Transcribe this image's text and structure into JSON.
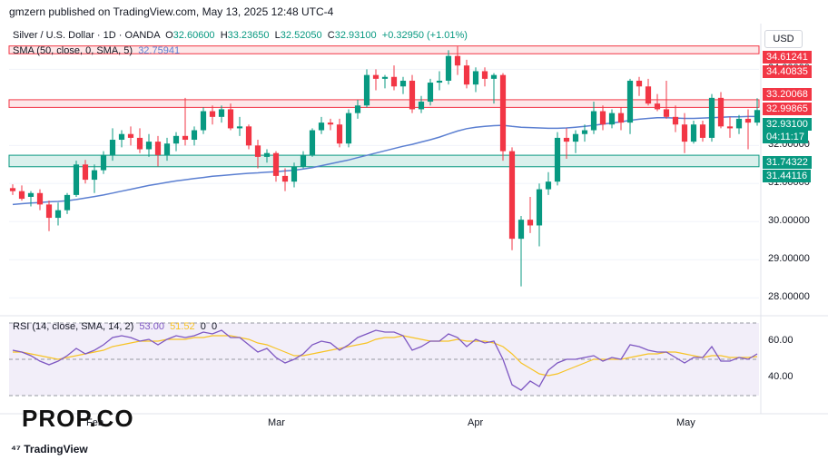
{
  "header": {
    "publisher": "gmzern published on TradingView.com, May 13, 2025 12:48 UTC-4"
  },
  "legend": {
    "symbol": "Silver / U.S. Dollar · 1D · OANDA",
    "open_label": "O",
    "open": "32.60600",
    "high_label": "H",
    "high": "33.23650",
    "low_label": "L",
    "low": "32.52050",
    "close_label": "C",
    "close": "32.93100",
    "change": "+0.32950 (+1.01%)",
    "sma_label": "SMA (50, close, 0, SMA, 5)",
    "sma_value": "32.75941"
  },
  "price_axis": {
    "currency": "USD",
    "ticks": [
      "34.00000",
      "32.00000",
      "31.00000",
      "30.00000",
      "29.00000",
      "28.00000"
    ],
    "tags": [
      {
        "text": "34.61241",
        "color": "#f23645"
      },
      {
        "text": "34.40835",
        "color": "#f23645"
      },
      {
        "text": "33.20068",
        "color": "#f23645"
      },
      {
        "text": "32.99865",
        "color": "#f23645"
      },
      {
        "text": "32.93100",
        "color": "#089981"
      },
      {
        "text": "04:11:17",
        "color": "#089981"
      },
      {
        "text": "31.74322",
        "color": "#089981"
      },
      {
        "text": "31.44116",
        "color": "#089981"
      }
    ]
  },
  "rsi": {
    "label": "RSI (14, close, SMA, 14, 2)",
    "value1": "53.00",
    "value2": "51.52",
    "value3": "0",
    "value4": "0",
    "ticks": [
      "60.00",
      "40.00"
    ]
  },
  "xaxis": {
    "labels": [
      "Feb",
      "Mar",
      "Apr",
      "May"
    ]
  },
  "brand": {
    "watermark": "PROP.CO",
    "tradingview": "TradingView"
  },
  "colors": {
    "up": "#089981",
    "down": "#f23645",
    "sma": "#5b7fd1",
    "rsi": "#7e57c2",
    "rsi_ma": "#f7c325"
  },
  "chart_data": {
    "type": "candlestick",
    "title": "Silver / U.S. Dollar · 1D · OANDA",
    "ylim": [
      27.6,
      35.2
    ],
    "resistance_zones": [
      [
        34.40835,
        34.61241
      ],
      [
        32.99865,
        33.20068
      ]
    ],
    "support_zone": [
      31.44116,
      31.74322
    ],
    "candles": [
      {
        "o": 30.88,
        "h": 30.98,
        "l": 30.7,
        "c": 30.8
      },
      {
        "o": 30.8,
        "h": 30.95,
        "l": 30.55,
        "c": 30.6
      },
      {
        "o": 30.65,
        "h": 30.8,
        "l": 30.4,
        "c": 30.75
      },
      {
        "o": 30.75,
        "h": 30.85,
        "l": 30.3,
        "c": 30.45
      },
      {
        "o": 30.45,
        "h": 30.55,
        "l": 29.75,
        "c": 30.1
      },
      {
        "o": 30.1,
        "h": 30.5,
        "l": 29.9,
        "c": 30.3
      },
      {
        "o": 30.3,
        "h": 30.75,
        "l": 30.2,
        "c": 30.7
      },
      {
        "o": 30.7,
        "h": 31.6,
        "l": 30.65,
        "c": 31.5
      },
      {
        "o": 31.5,
        "h": 31.62,
        "l": 31.0,
        "c": 31.1
      },
      {
        "o": 31.1,
        "h": 31.5,
        "l": 30.75,
        "c": 31.35
      },
      {
        "o": 31.35,
        "h": 31.85,
        "l": 31.25,
        "c": 31.75
      },
      {
        "o": 31.75,
        "h": 32.45,
        "l": 31.6,
        "c": 32.15
      },
      {
        "o": 32.15,
        "h": 32.4,
        "l": 31.95,
        "c": 32.3
      },
      {
        "o": 32.3,
        "h": 32.5,
        "l": 32.0,
        "c": 32.2
      },
      {
        "o": 32.2,
        "h": 32.45,
        "l": 31.8,
        "c": 31.9
      },
      {
        "o": 31.9,
        "h": 32.3,
        "l": 31.7,
        "c": 32.1
      },
      {
        "o": 32.1,
        "h": 32.25,
        "l": 31.45,
        "c": 31.75
      },
      {
        "o": 31.75,
        "h": 32.2,
        "l": 31.6,
        "c": 32.05
      },
      {
        "o": 32.05,
        "h": 32.35,
        "l": 31.85,
        "c": 32.25
      },
      {
        "o": 32.25,
        "h": 33.25,
        "l": 32.0,
        "c": 32.15
      },
      {
        "o": 32.15,
        "h": 32.5,
        "l": 32.0,
        "c": 32.4
      },
      {
        "o": 32.4,
        "h": 33.0,
        "l": 32.3,
        "c": 32.9
      },
      {
        "o": 32.9,
        "h": 33.05,
        "l": 32.55,
        "c": 32.75
      },
      {
        "o": 32.75,
        "h": 33.05,
        "l": 32.6,
        "c": 32.95
      },
      {
        "o": 32.95,
        "h": 33.1,
        "l": 32.4,
        "c": 32.45
      },
      {
        "o": 32.45,
        "h": 32.75,
        "l": 32.25,
        "c": 32.5
      },
      {
        "o": 32.5,
        "h": 32.55,
        "l": 31.9,
        "c": 32.0
      },
      {
        "o": 32.0,
        "h": 32.15,
        "l": 31.4,
        "c": 31.7
      },
      {
        "o": 31.7,
        "h": 31.9,
        "l": 31.55,
        "c": 31.8
      },
      {
        "o": 31.8,
        "h": 31.85,
        "l": 31.05,
        "c": 31.2
      },
      {
        "o": 31.2,
        "h": 31.4,
        "l": 30.8,
        "c": 31.05
      },
      {
        "o": 31.05,
        "h": 31.55,
        "l": 30.9,
        "c": 31.45
      },
      {
        "o": 31.45,
        "h": 31.85,
        "l": 31.4,
        "c": 31.75
      },
      {
        "o": 31.75,
        "h": 32.45,
        "l": 31.7,
        "c": 32.4
      },
      {
        "o": 32.4,
        "h": 32.75,
        "l": 32.3,
        "c": 32.6
      },
      {
        "o": 32.6,
        "h": 32.7,
        "l": 32.4,
        "c": 32.55
      },
      {
        "o": 32.55,
        "h": 32.7,
        "l": 31.95,
        "c": 32.05
      },
      {
        "o": 32.05,
        "h": 32.95,
        "l": 31.95,
        "c": 32.85
      },
      {
        "o": 32.85,
        "h": 33.2,
        "l": 32.7,
        "c": 33.05
      },
      {
        "o": 33.05,
        "h": 34.0,
        "l": 33.0,
        "c": 33.85
      },
      {
        "o": 33.85,
        "h": 34.0,
        "l": 33.45,
        "c": 33.75
      },
      {
        "o": 33.75,
        "h": 33.85,
        "l": 33.5,
        "c": 33.8
      },
      {
        "o": 33.8,
        "h": 34.1,
        "l": 33.45,
        "c": 33.55
      },
      {
        "o": 33.55,
        "h": 33.8,
        "l": 33.35,
        "c": 33.7
      },
      {
        "o": 33.7,
        "h": 33.85,
        "l": 32.85,
        "c": 32.95
      },
      {
        "o": 32.95,
        "h": 33.3,
        "l": 32.85,
        "c": 33.15
      },
      {
        "o": 33.15,
        "h": 33.75,
        "l": 33.05,
        "c": 33.65
      },
      {
        "o": 33.65,
        "h": 33.95,
        "l": 33.45,
        "c": 33.7
      },
      {
        "o": 33.7,
        "h": 34.5,
        "l": 33.6,
        "c": 34.35
      },
      {
        "o": 34.35,
        "h": 34.6,
        "l": 33.85,
        "c": 34.1
      },
      {
        "o": 34.1,
        "h": 34.25,
        "l": 33.5,
        "c": 33.6
      },
      {
        "o": 33.6,
        "h": 34.05,
        "l": 33.4,
        "c": 33.95
      },
      {
        "o": 33.95,
        "h": 34.05,
        "l": 33.55,
        "c": 33.75
      },
      {
        "o": 33.75,
        "h": 33.9,
        "l": 33.1,
        "c": 33.85
      },
      {
        "o": 33.85,
        "h": 33.9,
        "l": 31.6,
        "c": 31.85
      },
      {
        "o": 31.85,
        "h": 31.95,
        "l": 29.25,
        "c": 29.55
      },
      {
        "o": 29.55,
        "h": 30.15,
        "l": 28.3,
        "c": 30.05
      },
      {
        "o": 30.05,
        "h": 30.65,
        "l": 29.7,
        "c": 29.9
      },
      {
        "o": 29.9,
        "h": 31.0,
        "l": 29.35,
        "c": 30.85
      },
      {
        "o": 30.85,
        "h": 31.3,
        "l": 30.7,
        "c": 31.05
      },
      {
        "o": 31.05,
        "h": 32.35,
        "l": 30.95,
        "c": 32.2
      },
      {
        "o": 32.2,
        "h": 32.45,
        "l": 31.65,
        "c": 32.1
      },
      {
        "o": 32.1,
        "h": 32.4,
        "l": 31.8,
        "c": 32.3
      },
      {
        "o": 32.3,
        "h": 32.55,
        "l": 32.1,
        "c": 32.4
      },
      {
        "o": 32.4,
        "h": 33.15,
        "l": 32.3,
        "c": 32.9
      },
      {
        "o": 32.9,
        "h": 33.05,
        "l": 32.4,
        "c": 32.55
      },
      {
        "o": 32.55,
        "h": 32.95,
        "l": 32.45,
        "c": 32.85
      },
      {
        "o": 32.85,
        "h": 33.0,
        "l": 32.4,
        "c": 32.6
      },
      {
        "o": 32.6,
        "h": 33.75,
        "l": 32.3,
        "c": 33.7
      },
      {
        "o": 33.7,
        "h": 33.8,
        "l": 33.3,
        "c": 33.55
      },
      {
        "o": 33.55,
        "h": 33.75,
        "l": 33.05,
        "c": 33.1
      },
      {
        "o": 33.1,
        "h": 33.35,
        "l": 32.9,
        "c": 32.95
      },
      {
        "o": 32.95,
        "h": 33.7,
        "l": 32.7,
        "c": 32.75
      },
      {
        "o": 32.75,
        "h": 33.05,
        "l": 32.35,
        "c": 32.55
      },
      {
        "o": 32.55,
        "h": 32.85,
        "l": 31.8,
        "c": 32.1
      },
      {
        "o": 32.1,
        "h": 32.65,
        "l": 32.05,
        "c": 32.55
      },
      {
        "o": 32.55,
        "h": 32.65,
        "l": 32.1,
        "c": 32.2
      },
      {
        "o": 32.2,
        "h": 33.35,
        "l": 32.1,
        "c": 33.25
      },
      {
        "o": 33.25,
        "h": 33.4,
        "l": 32.45,
        "c": 32.5
      },
      {
        "o": 32.5,
        "h": 32.75,
        "l": 32.2,
        "c": 32.45
      },
      {
        "o": 32.45,
        "h": 32.8,
        "l": 32.3,
        "c": 32.7
      },
      {
        "o": 32.7,
        "h": 32.95,
        "l": 31.9,
        "c": 32.6
      },
      {
        "o": 32.6,
        "h": 33.24,
        "l": 32.52,
        "c": 32.93
      }
    ],
    "sma": [
      30.45,
      30.47,
      30.49,
      30.5,
      30.52,
      30.53,
      30.55,
      30.58,
      30.62,
      30.66,
      30.7,
      30.75,
      30.8,
      30.85,
      30.9,
      30.95,
      30.99,
      31.03,
      31.07,
      31.1,
      31.13,
      31.16,
      31.19,
      31.21,
      31.23,
      31.25,
      31.27,
      31.28,
      31.3,
      31.31,
      31.33,
      31.35,
      31.38,
      31.42,
      31.47,
      31.52,
      31.57,
      31.62,
      31.68,
      31.74,
      31.8,
      31.86,
      31.92,
      31.98,
      32.03,
      32.09,
      32.15,
      32.22,
      32.3,
      32.38,
      32.44,
      32.48,
      32.5,
      32.52,
      32.53,
      32.5,
      32.48,
      32.47,
      32.46,
      32.45,
      32.45,
      32.46,
      32.48,
      32.5,
      32.53,
      32.56,
      32.59,
      32.62,
      32.66,
      32.69,
      32.71,
      32.73,
      32.73,
      32.72,
      32.71,
      32.71,
      32.72,
      32.73,
      32.74,
      32.75,
      32.75,
      32.76,
      32.76
    ],
    "rsi_series": {
      "ylim": [
        25,
        72
      ],
      "levels": [
        70,
        50,
        30
      ],
      "rsi": [
        55,
        54,
        52,
        49,
        47,
        49,
        52,
        56,
        53,
        55,
        58,
        62,
        63,
        62,
        60,
        61,
        58,
        61,
        63,
        62,
        63,
        65,
        64,
        66,
        62,
        62,
        58,
        54,
        56,
        51,
        48,
        50,
        53,
        58,
        60,
        59,
        55,
        58,
        62,
        64,
        66,
        65,
        65,
        63,
        55,
        57,
        60,
        60,
        64,
        62,
        57,
        61,
        59,
        60,
        50,
        36,
        33,
        38,
        35,
        44,
        48,
        50,
        50,
        51,
        52,
        49,
        51,
        50,
        58,
        57,
        55,
        54,
        54,
        51,
        48,
        51,
        51,
        57,
        49,
        49,
        51,
        50,
        53
      ],
      "rsi_ma": [
        54,
        54,
        53,
        52,
        51,
        50,
        51,
        52,
        53,
        54,
        55,
        57,
        58,
        59,
        60,
        60,
        60,
        61,
        61,
        61,
        62,
        62,
        63,
        63,
        63,
        62,
        61,
        59,
        58,
        56,
        54,
        52,
        52,
        53,
        54,
        55,
        56,
        57,
        58,
        59,
        61,
        62,
        62,
        63,
        62,
        61,
        60,
        60,
        60,
        61,
        60,
        60,
        60,
        59,
        57,
        53,
        48,
        45,
        42,
        41,
        42,
        44,
        46,
        48,
        50,
        50,
        50,
        50,
        51,
        52,
        53,
        53,
        54,
        54,
        53,
        52,
        51,
        52,
        52,
        51,
        51,
        51,
        51.52
      ]
    }
  }
}
